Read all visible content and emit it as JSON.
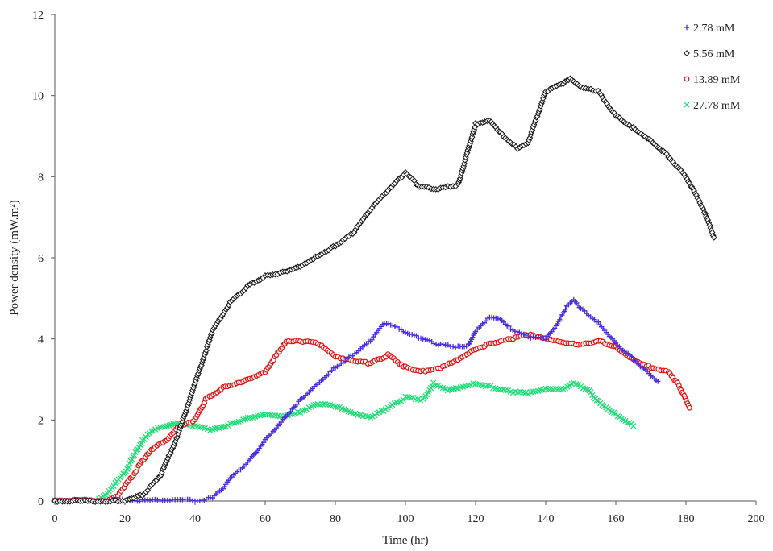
{
  "chart_data": {
    "type": "scatter",
    "title": "",
    "xlabel": "Time (hr)",
    "ylabel": "Power density (mW.m²)",
    "xlim": [
      0,
      200
    ],
    "ylim": [
      0,
      12
    ],
    "xticks": [
      0,
      20,
      40,
      60,
      80,
      100,
      120,
      140,
      160,
      180,
      200
    ],
    "yticks": [
      0,
      2,
      4,
      6,
      8,
      10,
      12
    ],
    "grid": false,
    "legend_position": "top-right",
    "series": [
      {
        "name": "2.78 mM",
        "color": "#4B2BE0",
        "marker": "plus",
        "points": [
          [
            0,
            0.02
          ],
          [
            20,
            0.02
          ],
          [
            30,
            0.02
          ],
          [
            40,
            0.02
          ],
          [
            42,
            0.02
          ],
          [
            45,
            0.1
          ],
          [
            48,
            0.3
          ],
          [
            50,
            0.55
          ],
          [
            55,
            0.95
          ],
          [
            60,
            1.5
          ],
          [
            65,
            2.0
          ],
          [
            70,
            2.5
          ],
          [
            75,
            2.9
          ],
          [
            80,
            3.3
          ],
          [
            85,
            3.6
          ],
          [
            90,
            3.95
          ],
          [
            94,
            4.4
          ],
          [
            97,
            4.3
          ],
          [
            100,
            4.15
          ],
          [
            105,
            4.0
          ],
          [
            110,
            3.85
          ],
          [
            115,
            3.8
          ],
          [
            118,
            3.85
          ],
          [
            120,
            4.2
          ],
          [
            124,
            4.55
          ],
          [
            127,
            4.5
          ],
          [
            130,
            4.25
          ],
          [
            135,
            4.05
          ],
          [
            140,
            4.0
          ],
          [
            143,
            4.3
          ],
          [
            146,
            4.8
          ],
          [
            148,
            4.95
          ],
          [
            150,
            4.75
          ],
          [
            155,
            4.4
          ],
          [
            160,
            3.9
          ],
          [
            165,
            3.5
          ],
          [
            170,
            3.1
          ],
          [
            172,
            2.95
          ]
        ]
      },
      {
        "name": "5.56 mM",
        "color": "#111111",
        "marker": "diamond-open",
        "points": [
          [
            0,
            0.0
          ],
          [
            18,
            0.0
          ],
          [
            20,
            0.02
          ],
          [
            25,
            0.15
          ],
          [
            30,
            0.6
          ],
          [
            35,
            1.6
          ],
          [
            40,
            2.9
          ],
          [
            45,
            4.2
          ],
          [
            50,
            4.9
          ],
          [
            55,
            5.3
          ],
          [
            60,
            5.55
          ],
          [
            65,
            5.65
          ],
          [
            70,
            5.8
          ],
          [
            75,
            6.05
          ],
          [
            80,
            6.3
          ],
          [
            85,
            6.6
          ],
          [
            90,
            7.2
          ],
          [
            95,
            7.65
          ],
          [
            100,
            8.1
          ],
          [
            104,
            7.75
          ],
          [
            110,
            7.7
          ],
          [
            115,
            7.8
          ],
          [
            120,
            9.3
          ],
          [
            124,
            9.4
          ],
          [
            128,
            9.0
          ],
          [
            132,
            8.7
          ],
          [
            135,
            8.85
          ],
          [
            140,
            10.1
          ],
          [
            145,
            10.3
          ],
          [
            147,
            10.4
          ],
          [
            150,
            10.2
          ],
          [
            155,
            10.1
          ],
          [
            160,
            9.5
          ],
          [
            165,
            9.2
          ],
          [
            170,
            8.9
          ],
          [
            175,
            8.5
          ],
          [
            180,
            8.0
          ],
          [
            185,
            7.2
          ],
          [
            188,
            6.5
          ]
        ]
      },
      {
        "name": "13.89 mM",
        "color": "#E01010",
        "marker": "circle-open",
        "points": [
          [
            0,
            0.02
          ],
          [
            15,
            0.02
          ],
          [
            18,
            0.15
          ],
          [
            22,
            0.6
          ],
          [
            25,
            1.0
          ],
          [
            28,
            1.3
          ],
          [
            32,
            1.5
          ],
          [
            35,
            1.8
          ],
          [
            40,
            2.0
          ],
          [
            43,
            2.5
          ],
          [
            48,
            2.8
          ],
          [
            55,
            3.0
          ],
          [
            60,
            3.2
          ],
          [
            64,
            3.7
          ],
          [
            66,
            3.95
          ],
          [
            70,
            3.95
          ],
          [
            75,
            3.9
          ],
          [
            80,
            3.55
          ],
          [
            85,
            3.45
          ],
          [
            90,
            3.4
          ],
          [
            95,
            3.6
          ],
          [
            100,
            3.3
          ],
          [
            105,
            3.2
          ],
          [
            110,
            3.3
          ],
          [
            115,
            3.5
          ],
          [
            120,
            3.75
          ],
          [
            125,
            3.9
          ],
          [
            130,
            4.0
          ],
          [
            135,
            4.1
          ],
          [
            140,
            4.0
          ],
          [
            145,
            3.9
          ],
          [
            150,
            3.85
          ],
          [
            155,
            3.95
          ],
          [
            160,
            3.8
          ],
          [
            165,
            3.5
          ],
          [
            170,
            3.3
          ],
          [
            175,
            3.2
          ],
          [
            178,
            2.85
          ],
          [
            181,
            2.3
          ]
        ]
      },
      {
        "name": "27.78 mM",
        "color": "#22DD77",
        "marker": "x",
        "points": [
          [
            0,
            0.02
          ],
          [
            12,
            0.02
          ],
          [
            15,
            0.2
          ],
          [
            20,
            0.7
          ],
          [
            25,
            1.5
          ],
          [
            28,
            1.75
          ],
          [
            32,
            1.85
          ],
          [
            35,
            1.9
          ],
          [
            40,
            1.85
          ],
          [
            45,
            1.75
          ],
          [
            50,
            1.9
          ],
          [
            55,
            2.05
          ],
          [
            60,
            2.15
          ],
          [
            65,
            2.1
          ],
          [
            70,
            2.2
          ],
          [
            75,
            2.4
          ],
          [
            80,
            2.35
          ],
          [
            85,
            2.15
          ],
          [
            90,
            2.05
          ],
          [
            95,
            2.3
          ],
          [
            100,
            2.55
          ],
          [
            105,
            2.5
          ],
          [
            108,
            2.9
          ],
          [
            112,
            2.75
          ],
          [
            115,
            2.8
          ],
          [
            120,
            2.9
          ],
          [
            125,
            2.8
          ],
          [
            130,
            2.7
          ],
          [
            135,
            2.65
          ],
          [
            140,
            2.75
          ],
          [
            145,
            2.75
          ],
          [
            148,
            2.9
          ],
          [
            152,
            2.75
          ],
          [
            155,
            2.45
          ],
          [
            160,
            2.15
          ],
          [
            165,
            1.85
          ]
        ]
      }
    ]
  }
}
